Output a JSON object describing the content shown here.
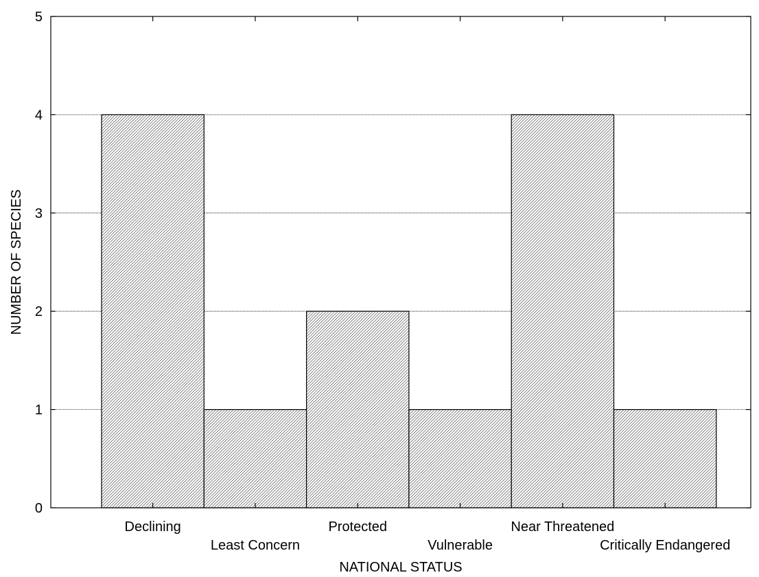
{
  "chart_data": {
    "type": "bar",
    "title": "",
    "xlabel": "NATIONAL STATUS",
    "ylabel": "NUMBER OF SPECIES",
    "categories": [
      "Declining",
      "Least Concern",
      "Protected",
      "Vulnerable",
      "Near Threatened",
      "Critically Endangered"
    ],
    "values": [
      4,
      1,
      2,
      1,
      4,
      1
    ],
    "ylim": [
      0,
      5
    ],
    "yticks": [
      0,
      1,
      2,
      3,
      4,
      5
    ],
    "grid": "horizontal",
    "legend": "none",
    "bar_fill": "hatched",
    "colors": {
      "bar_stroke": "#000000",
      "hatch": "#000000",
      "grid": "#000000",
      "background": "#ffffff"
    }
  }
}
